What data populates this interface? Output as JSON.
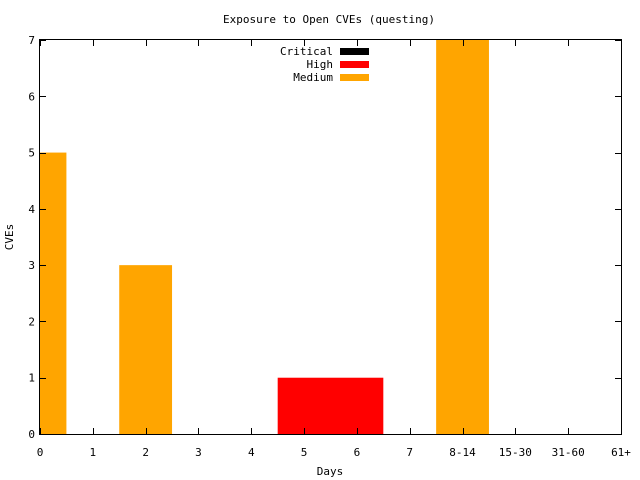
{
  "chart_data": {
    "type": "bar",
    "title": "Exposure to Open CVEs (questing)",
    "xlabel": "Days",
    "ylabel": "CVEs",
    "ylim": [
      0,
      7
    ],
    "xlim": [
      0,
      11
    ],
    "yticks": [
      "0",
      "1",
      "2",
      "3",
      "4",
      "5",
      "6",
      "7"
    ],
    "xticks": [
      "0",
      "1",
      "2",
      "3",
      "4",
      "5",
      "6",
      "7",
      "8-14",
      "15-30",
      "31-60",
      "61+"
    ],
    "grid": false,
    "legend_position": "top-center",
    "series": [
      {
        "name": "Critical",
        "color": "#000000",
        "bars": []
      },
      {
        "name": "High",
        "color": "#ff0000",
        "bars": [
          {
            "from": 4.5,
            "to": 6.5,
            "value": 1
          }
        ]
      },
      {
        "name": "Medium",
        "color": "#ffa500",
        "bars": [
          {
            "from": 0,
            "to": 0.5,
            "value": 5
          },
          {
            "from": 1.5,
            "to": 2.5,
            "value": 3
          },
          {
            "from": 7.5,
            "to": 8.5,
            "value": 7
          }
        ]
      }
    ]
  }
}
